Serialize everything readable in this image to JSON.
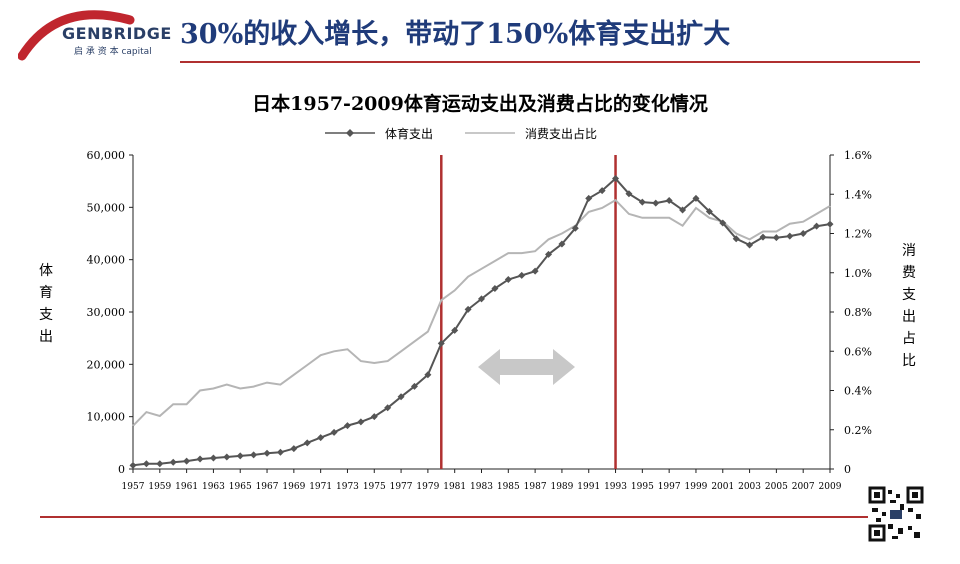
{
  "header": {
    "logo_name": "GENBRIDGE",
    "logo_sub": "启 承 资 本 capital",
    "title": "30%的收入增长，带动了150%体育支出扩大"
  },
  "colors": {
    "accent": "#b03030",
    "title": "#1f3b7a",
    "series1": "#555555",
    "series2": "#b5b5b5",
    "arrow": "#c8c8c8"
  },
  "chart_data": {
    "type": "line",
    "title": "日本1957-2009体育运动支出及消费占比的变化情况",
    "ylabel_left": "体育支出",
    "ylabel_right": "消费支出占比",
    "ylim_left": [
      0,
      60000
    ],
    "ylim_right": [
      0,
      0.016
    ],
    "y_ticks_left": [
      "0",
      "10,000",
      "20,000",
      "30,000",
      "40,000",
      "50,000",
      "60,000"
    ],
    "y_ticks_right": [
      "0",
      "0.2%",
      "0.4%",
      "0.6%",
      "0.8%",
      "1.0%",
      "1.2%",
      "1.4%",
      "1.6%"
    ],
    "x_ticks": [
      "1957",
      "1959",
      "1961",
      "1963",
      "1965",
      "1967",
      "1969",
      "1971",
      "1973",
      "1975",
      "1977",
      "1979",
      "1981",
      "1983",
      "1985",
      "1987",
      "1989",
      "1991",
      "1993",
      "1995",
      "1997",
      "1999",
      "2001",
      "2003",
      "2005",
      "2007",
      "2009"
    ],
    "legend": [
      "体育支出",
      "消费支出占比"
    ],
    "legend_position": "top",
    "markers": [
      1980,
      1993
    ],
    "x": [
      1957,
      1958,
      1959,
      1960,
      1961,
      1962,
      1963,
      1964,
      1965,
      1966,
      1967,
      1968,
      1969,
      1970,
      1971,
      1972,
      1973,
      1974,
      1975,
      1976,
      1977,
      1978,
      1979,
      1980,
      1981,
      1982,
      1983,
      1984,
      1985,
      1986,
      1987,
      1988,
      1989,
      1990,
      1991,
      1992,
      1993,
      1994,
      1995,
      1996,
      1997,
      1998,
      1999,
      2000,
      2001,
      2002,
      2003,
      2004,
      2005,
      2006,
      2007,
      2008,
      2009
    ],
    "series": [
      {
        "name": "体育支出",
        "axis": "left",
        "values": [
          700,
          1000,
          1000,
          1300,
          1500,
          1900,
          2100,
          2300,
          2500,
          2700,
          3000,
          3200,
          3900,
          5000,
          6000,
          7000,
          8300,
          9000,
          10000,
          11700,
          13800,
          15800,
          18000,
          24000,
          26500,
          30500,
          32500,
          34500,
          36200,
          37000,
          37800,
          41000,
          43000,
          46000,
          51700,
          53200,
          55500,
          52600,
          51000,
          50800,
          51300,
          49500,
          51700,
          49200,
          47000,
          44000,
          42800,
          44300,
          44200,
          44500,
          45000,
          46400,
          46800
        ]
      },
      {
        "name": "消费支出占比",
        "axis": "right",
        "values": [
          0.0022,
          0.0029,
          0.0027,
          0.0033,
          0.0033,
          0.004,
          0.0041,
          0.0043,
          0.0041,
          0.0042,
          0.0044,
          0.0043,
          0.0048,
          0.0053,
          0.0058,
          0.006,
          0.0061,
          0.0055,
          0.0054,
          0.0055,
          0.006,
          0.0065,
          0.007,
          0.0086,
          0.0091,
          0.0098,
          0.0102,
          0.0106,
          0.011,
          0.011,
          0.0111,
          0.0117,
          0.012,
          0.0124,
          0.0131,
          0.0133,
          0.0137,
          0.013,
          0.0128,
          0.0128,
          0.0128,
          0.0124,
          0.0133,
          0.0128,
          0.0126,
          0.012,
          0.0117,
          0.0121,
          0.0121,
          0.0125,
          0.0126,
          0.013,
          0.0134
        ]
      }
    ]
  }
}
